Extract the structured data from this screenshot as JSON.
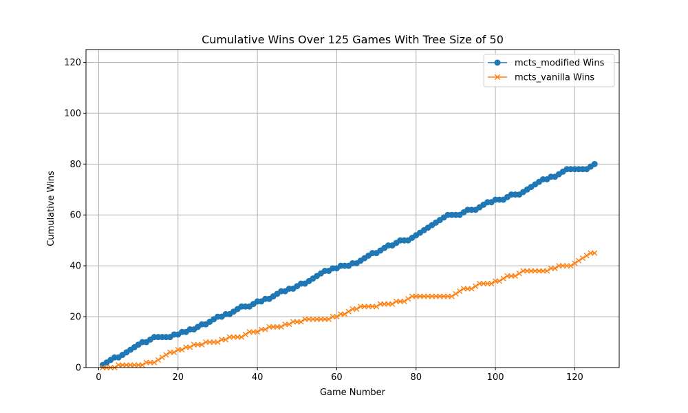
{
  "chart_data": {
    "type": "line",
    "title": "Cumulative Wins Over 125 Games With Tree Size of 50",
    "xlabel": "Game Number",
    "ylabel": "Cumulative Wins",
    "xlim": [
      -3.2,
      131.2
    ],
    "ylim": [
      0,
      125
    ],
    "xticks": [
      0,
      20,
      40,
      60,
      80,
      100,
      120
    ],
    "yticks": [
      0,
      20,
      40,
      60,
      80,
      100,
      120
    ],
    "grid": true,
    "legend_position": "top-right",
    "series": [
      {
        "name": "mcts_modified Wins",
        "color": "#1f77b4",
        "marker": "circle",
        "x": [
          1,
          2,
          3,
          4,
          5,
          6,
          7,
          8,
          9,
          10,
          11,
          12,
          13,
          14,
          15,
          16,
          17,
          18,
          19,
          20,
          21,
          22,
          23,
          24,
          25,
          26,
          27,
          28,
          29,
          30,
          31,
          32,
          33,
          34,
          35,
          36,
          37,
          38,
          39,
          40,
          41,
          42,
          43,
          44,
          45,
          46,
          47,
          48,
          49,
          50,
          51,
          52,
          53,
          54,
          55,
          56,
          57,
          58,
          59,
          60,
          61,
          62,
          63,
          64,
          65,
          66,
          67,
          68,
          69,
          70,
          71,
          72,
          73,
          74,
          75,
          76,
          77,
          78,
          79,
          80,
          81,
          82,
          83,
          84,
          85,
          86,
          87,
          88,
          89,
          90,
          91,
          92,
          93,
          94,
          95,
          96,
          97,
          98,
          99,
          100,
          101,
          102,
          103,
          104,
          105,
          106,
          107,
          108,
          109,
          110,
          111,
          112,
          113,
          114,
          115,
          116,
          117,
          118,
          119,
          120,
          121,
          122,
          123,
          124,
          125
        ],
        "y": [
          1,
          2,
          3,
          4,
          4,
          5,
          6,
          7,
          8,
          9,
          10,
          10,
          11,
          12,
          12,
          12,
          12,
          12,
          13,
          13,
          14,
          14,
          15,
          15,
          16,
          17,
          17,
          18,
          19,
          20,
          20,
          21,
          21,
          22,
          23,
          24,
          24,
          24,
          25,
          26,
          26,
          27,
          27,
          28,
          29,
          30,
          30,
          31,
          31,
          32,
          33,
          33,
          34,
          35,
          36,
          37,
          38,
          38,
          39,
          39,
          40,
          40,
          40,
          41,
          41,
          42,
          43,
          44,
          45,
          45,
          46,
          47,
          48,
          48,
          49,
          50,
          50,
          50,
          51,
          52,
          53,
          54,
          55,
          56,
          57,
          58,
          59,
          60,
          60,
          60,
          60,
          61,
          62,
          62,
          62,
          63,
          64,
          65,
          65,
          66,
          66,
          66,
          67,
          68,
          68,
          68,
          69,
          70,
          71,
          72,
          73,
          74,
          74,
          75,
          75,
          76,
          77,
          78,
          78,
          78,
          78,
          78,
          78,
          79,
          80
        ]
      },
      {
        "name": "mcts_vanilla Wins",
        "color": "#ff7f0e",
        "marker": "x",
        "x": [
          1,
          2,
          3,
          4,
          5,
          6,
          7,
          8,
          9,
          10,
          11,
          12,
          13,
          14,
          15,
          16,
          17,
          18,
          19,
          20,
          21,
          22,
          23,
          24,
          25,
          26,
          27,
          28,
          29,
          30,
          31,
          32,
          33,
          34,
          35,
          36,
          37,
          38,
          39,
          40,
          41,
          42,
          43,
          44,
          45,
          46,
          47,
          48,
          49,
          50,
          51,
          52,
          53,
          54,
          55,
          56,
          57,
          58,
          59,
          60,
          61,
          62,
          63,
          64,
          65,
          66,
          67,
          68,
          69,
          70,
          71,
          72,
          73,
          74,
          75,
          76,
          77,
          78,
          79,
          80,
          81,
          82,
          83,
          84,
          85,
          86,
          87,
          88,
          89,
          90,
          91,
          92,
          93,
          94,
          95,
          96,
          97,
          98,
          99,
          100,
          101,
          102,
          103,
          104,
          105,
          106,
          107,
          108,
          109,
          110,
          111,
          112,
          113,
          114,
          115,
          116,
          117,
          118,
          119,
          120,
          121,
          122,
          123,
          124,
          125
        ],
        "y": [
          0,
          0,
          0,
          0,
          1,
          1,
          1,
          1,
          1,
          1,
          1,
          2,
          2,
          2,
          3,
          4,
          5,
          6,
          6,
          7,
          7,
          8,
          8,
          9,
          9,
          9,
          10,
          10,
          10,
          10,
          11,
          11,
          12,
          12,
          12,
          12,
          13,
          14,
          14,
          14,
          15,
          15,
          16,
          16,
          16,
          16,
          17,
          17,
          18,
          18,
          18,
          19,
          19,
          19,
          19,
          19,
          19,
          19,
          20,
          20,
          21,
          21,
          22,
          23,
          23,
          24,
          24,
          24,
          24,
          24,
          25,
          25,
          25,
          25,
          26,
          26,
          26,
          27,
          28,
          28,
          28,
          28,
          28,
          28,
          28,
          28,
          28,
          28,
          28,
          29,
          30,
          31,
          31,
          31,
          32,
          33,
          33,
          33,
          33,
          34,
          34,
          35,
          36,
          36,
          36,
          37,
          38,
          38,
          38,
          38,
          38,
          38,
          38,
          39,
          39,
          40,
          40,
          40,
          40,
          41,
          42,
          43,
          44,
          45,
          45
        ]
      }
    ]
  }
}
